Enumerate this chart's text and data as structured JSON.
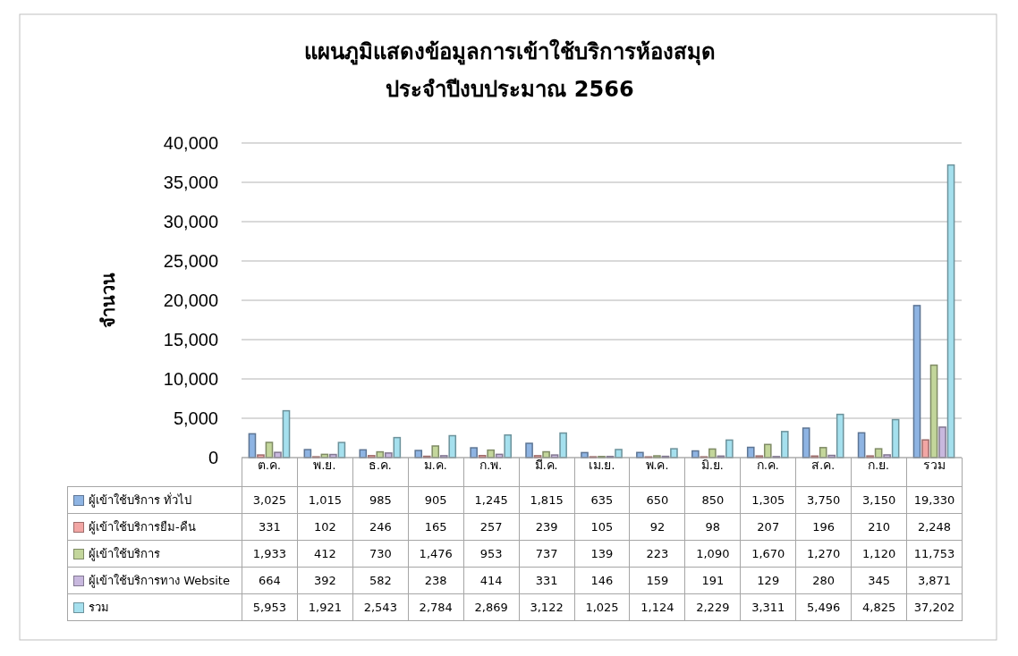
{
  "chart_data": {
    "type": "bar",
    "title": "แผนภูมิแสดงข้อมูลการเข้าใช้บริการห้องสมุด",
    "subtitle": "ประจำปีงบประมาณ 2566",
    "ylabel": "จำนวน",
    "categories": [
      "ต.ค.",
      "พ.ย.",
      "ธ.ค.",
      "ม.ค.",
      "ก.พ.",
      "มี.ค.",
      "เม.ย.",
      "พ.ค.",
      "มิ.ย.",
      "ก.ค.",
      "ส.ค.",
      "ก.ย.",
      "รวม"
    ],
    "series": [
      {
        "name": "ผู้เข้าใช้บริการ ทั่วไป",
        "color": "#8eb4e3",
        "values": [
          3025,
          1015,
          985,
          905,
          1245,
          1815,
          635,
          650,
          850,
          1305,
          3750,
          3150,
          19330
        ],
        "value_labels": [
          "3,025",
          "1,015",
          "985",
          "905",
          "1,245",
          "1,815",
          "635",
          "650",
          "850",
          "1,305",
          "3,750",
          "3,150",
          "19,330"
        ]
      },
      {
        "name": "ผู้เข้าใช้บริการยืม-คืน",
        "color": "#f2a6a4",
        "values": [
          331,
          102,
          246,
          165,
          257,
          239,
          105,
          92,
          98,
          207,
          196,
          210,
          2248
        ],
        "value_labels": [
          "331",
          "102",
          "246",
          "165",
          "257",
          "239",
          "105",
          "92",
          "98",
          "207",
          "196",
          "210",
          "2,248"
        ]
      },
      {
        "name": "ผู้เข้าใช้บริการ",
        "color": "#c3d69b",
        "values": [
          1933,
          412,
          730,
          1476,
          953,
          737,
          139,
          223,
          1090,
          1670,
          1270,
          1120,
          11753
        ],
        "value_labels": [
          "1,933",
          "412",
          "730",
          "1,476",
          "953",
          "737",
          "139",
          "223",
          "1,090",
          "1,670",
          "1,270",
          "1,120",
          "11,753"
        ]
      },
      {
        "name": "ผู้เข้าใช้บริการทาง Website",
        "color": "#c8b8de",
        "values": [
          664,
          392,
          582,
          238,
          414,
          331,
          146,
          159,
          191,
          129,
          280,
          345,
          3871
        ],
        "value_labels": [
          "664",
          "392",
          "582",
          "238",
          "414",
          "331",
          "146",
          "159",
          "191",
          "129",
          "280",
          "345",
          "3,871"
        ]
      },
      {
        "name": "รวม",
        "color": "#a5e0ee",
        "values": [
          5953,
          1921,
          2543,
          2784,
          2869,
          3122,
          1025,
          1124,
          2229,
          3311,
          5496,
          4825,
          37202
        ],
        "value_labels": [
          "5,953",
          "1,921",
          "2,543",
          "2,784",
          "2,869",
          "3,122",
          "1,025",
          "1,124",
          "2,229",
          "3,311",
          "5,496",
          "4,825",
          "37,202"
        ]
      }
    ],
    "ylim": [
      0,
      40000
    ],
    "yticks": [
      {
        "value": 0,
        "label": "0"
      },
      {
        "value": 5000,
        "label": "5,000"
      },
      {
        "value": 10000,
        "label": "10,000"
      },
      {
        "value": 15000,
        "label": "15,000"
      },
      {
        "value": 20000,
        "label": "20,000"
      },
      {
        "value": 25000,
        "label": "25,000"
      },
      {
        "value": 30000,
        "label": "30,000"
      },
      {
        "value": 35000,
        "label": "35,000"
      },
      {
        "value": 40000,
        "label": "40,000"
      }
    ],
    "grid": "y",
    "legend": "bottom"
  }
}
